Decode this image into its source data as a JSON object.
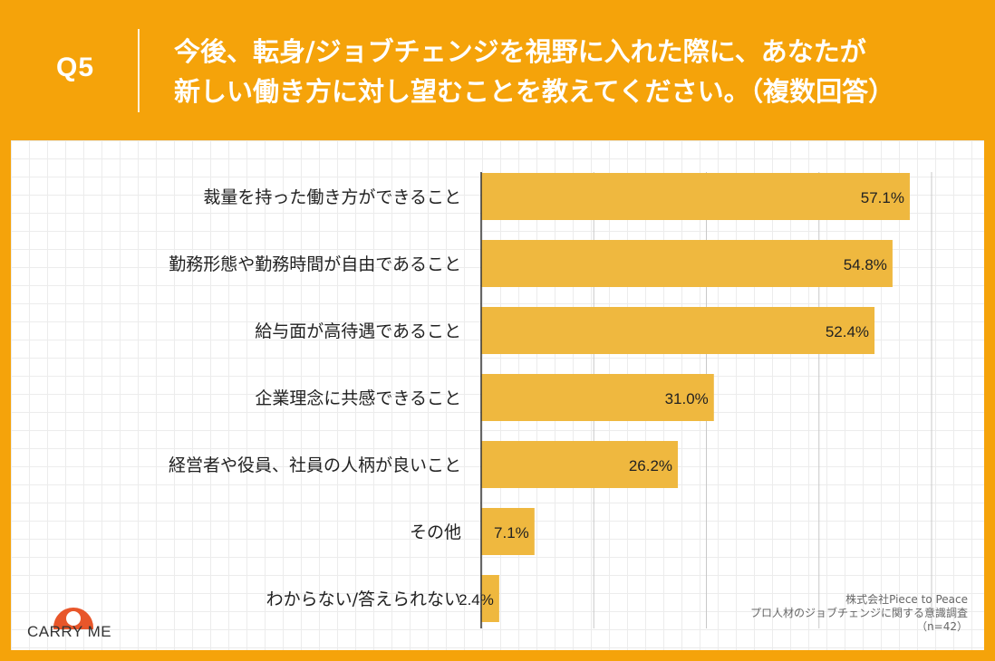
{
  "header": {
    "question_number": "Q5",
    "question_line1": "今後、転身/ジョブチェンジを視野に入れた際に、あなたが",
    "question_line2": "新しい働き方に対し望むことを教えてください。（複数回答）"
  },
  "chart_data": {
    "type": "bar",
    "orientation": "horizontal",
    "categories": [
      "裁量を持った働き方ができること",
      "勤務形態や勤務時間が自由であること",
      "給与面が高待遇であること",
      "企業理念に共感できること",
      "経営者や役員、社員の人柄が良いこと",
      "その他",
      "わからない/答えられない"
    ],
    "values": [
      57.1,
      54.8,
      52.4,
      31.0,
      26.2,
      7.1,
      2.4
    ],
    "value_labels": [
      "57.1%",
      "54.8%",
      "52.4%",
      "31.0%",
      "26.2%",
      "7.1%",
      "2.4%"
    ],
    "xlim": [
      0,
      60
    ],
    "grid_step": 15,
    "grid": true,
    "bar_color": "#efb83f"
  },
  "logo": {
    "text": "CARRY ME",
    "color": "#e8562a"
  },
  "source": {
    "line1": "株式会社Piece to Peace",
    "line2": "プロ人材のジョブチェンジに関する意識調査",
    "line3": "（n=42）"
  }
}
